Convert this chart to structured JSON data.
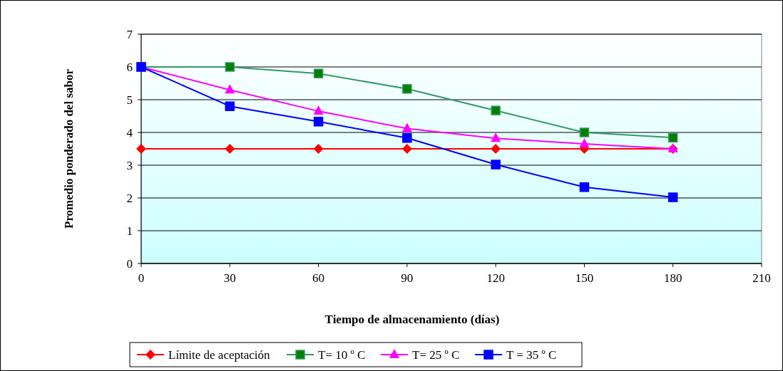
{
  "chart_data": {
    "type": "line",
    "xlabel": "Tiempo de almacenamiento (días)",
    "ylabel": "Promedio ponderado del sabor",
    "x": [
      0,
      30,
      60,
      90,
      120,
      150,
      180
    ],
    "xlim": [
      0,
      210
    ],
    "xticks": [
      0,
      30,
      60,
      90,
      120,
      150,
      180,
      210
    ],
    "ylim": [
      0,
      7
    ],
    "yticks": [
      0,
      1,
      2,
      3,
      4,
      5,
      6,
      7
    ],
    "grid": "y",
    "legend": "bottom",
    "series": [
      {
        "name": "Límite de aceptación",
        "color": "#ff0000",
        "marker": "diamond",
        "values": [
          3.5,
          3.5,
          3.5,
          3.5,
          3.5,
          3.5,
          3.5
        ]
      },
      {
        "name": "T= 10 º C",
        "color": "#339966",
        "marker": "square",
        "values": [
          6.0,
          6.0,
          5.8,
          5.33,
          4.67,
          4.0,
          3.84
        ]
      },
      {
        "name": "T= 25 º C",
        "color": "#ff00ff",
        "marker": "triangle",
        "values": [
          6.0,
          5.3,
          4.65,
          4.12,
          3.82,
          3.65,
          3.5
        ]
      },
      {
        "name": "T = 35 º C",
        "color": "#0000ff",
        "marker": "square",
        "values": [
          6.0,
          4.8,
          4.33,
          3.83,
          3.02,
          2.33,
          2.02
        ]
      }
    ]
  }
}
